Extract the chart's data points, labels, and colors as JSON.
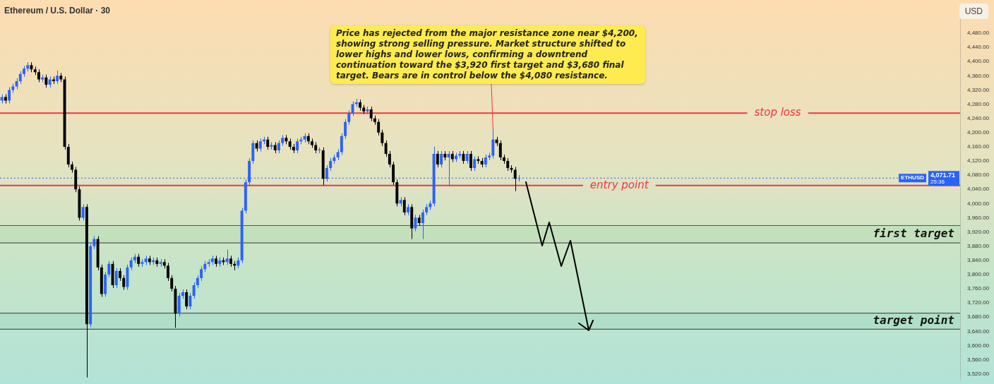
{
  "chart_data": {
    "type": "candlestick",
    "title": "Ethereum / U.S. Dollar · 30",
    "ylabel": "USD",
    "annotations": [
      "Price has rejected from the major resistance zone near $4,200, showing strong selling pressure. Market structure shifted to lower highs and lower lows, confirming a downtrend continuation toward the $3,920 first target and $3,680 final target. Bears are in control below the $4,080 resistance.",
      "ETHUSD",
      "25:36"
    ],
    "categories": [
      null,
      null,
      null,
      null,
      null,
      null,
      null,
      null,
      null,
      null,
      null,
      null,
      null,
      null,
      null,
      null,
      null,
      null,
      null,
      null,
      null,
      null,
      null,
      null,
      null,
      null,
      null,
      null,
      null,
      null,
      null,
      null,
      null,
      null,
      null,
      null,
      null,
      null,
      null,
      null,
      null,
      null,
      null,
      null,
      null,
      null,
      null,
      null,
      null,
      null,
      null,
      null,
      null,
      null,
      null,
      null,
      null,
      null,
      null,
      null,
      null,
      null,
      null,
      null,
      null,
      null,
      null,
      null,
      null,
      null,
      null,
      null,
      null,
      null,
      null,
      null,
      null,
      null,
      null,
      null,
      null,
      null,
      null,
      null,
      null,
      null,
      null,
      null,
      null,
      null,
      null,
      null,
      null,
      null,
      null,
      null,
      null,
      null,
      null,
      null,
      null,
      null,
      null,
      null,
      null,
      null,
      null,
      null,
      null,
      null,
      null,
      null,
      null,
      null,
      null,
      null,
      null,
      null,
      null,
      null,
      null,
      null,
      null,
      null,
      null,
      null,
      null,
      null,
      null,
      null,
      null,
      null,
      null,
      null,
      null,
      null,
      null,
      null,
      null,
      null,
      null,
      null,
      null,
      null,
      null,
      null,
      null,
      null,
      null,
      null,
      null,
      null,
      null,
      null,
      null,
      null,
      null,
      null,
      null,
      null,
      null,
      null,
      null,
      null,
      null,
      null,
      null,
      null,
      null,
      null,
      null,
      null,
      null,
      null,
      null,
      null,
      null,
      null,
      null,
      null,
      null,
      null,
      null,
      null,
      null,
      null,
      null,
      null,
      null,
      null,
      null,
      null,
      null,
      null,
      null,
      null,
      null,
      null,
      null,
      null,
      null,
      null,
      null,
      null,
      null,
      null,
      null,
      null,
      null,
      null,
      null,
      null,
      null,
      null,
      null,
      null,
      null,
      null,
      null,
      null,
      null,
      null,
      null,
      null,
      null,
      null,
      null,
      null,
      null,
      null,
      null,
      null,
      null,
      null,
      null,
      null,
      null,
      null,
      null,
      null,
      null,
      null,
      null,
      null,
      null,
      null,
      null,
      null,
      null,
      null,
      null,
      null,
      null,
      null,
      null,
      null,
      null,
      null,
      null,
      null
    ],
    "colors": [
      "#2962ff",
      "#000000",
      "#2962ff",
      "#2962ff",
      "#2962ff",
      "#2962ff",
      "#2962ff",
      "#2962ff",
      "#000000",
      "#000000",
      "#000000",
      "#2962ff",
      "#000000",
      "#2962ff",
      "#000000",
      "#2962ff",
      "#000000",
      "#000000",
      "#000000",
      "#000000",
      "#000000",
      "#000000",
      "#2962ff",
      "#000000",
      "#2962ff",
      "#2962ff",
      "#000000",
      "#000000",
      "#2962ff",
      "#2962ff",
      "#000000",
      "#2962ff",
      "#000000",
      "#000000",
      "#2962ff",
      "#2962ff",
      "#2962ff",
      "#000000",
      "#2962ff",
      "#2962ff",
      "#000000",
      "#2962ff",
      "#000000",
      "#2962ff",
      "#000000",
      "#000000",
      "#000000",
      "#000000",
      "#2962ff",
      "#2962ff",
      "#000000",
      "#2962ff",
      "#2962ff",
      "#2962ff",
      "#2962ff",
      "#2962ff",
      "#2962ff",
      "#2962ff",
      "#000000",
      "#2962ff",
      "#000000",
      "#2962ff",
      "#000000",
      "#000000",
      "#2962ff",
      "#2962ff",
      "#2962ff",
      "#2962ff",
      "#2962ff",
      "#000000",
      "#2962ff",
      "#2962ff",
      "#000000",
      "#2962ff",
      "#000000",
      "#2962ff",
      "#2962ff",
      "#000000",
      "#000000",
      "#000000",
      "#2962ff",
      "#2962ff",
      "#2962ff",
      "#000000",
      "#000000",
      "#000000",
      "#2962ff",
      "#000000",
      "#2962ff",
      "#2962ff",
      "#2962ff",
      "#2962ff",
      "#2962ff",
      "#2962ff",
      "#2962ff",
      "#2962ff",
      "#2962ff",
      "#000000",
      "#000000",
      "#2962ff",
      "#000000",
      "#000000",
      "#000000",
      "#000000",
      "#000000",
      "#000000",
      "#000000",
      "#000000",
      "#2962ff",
      "#000000",
      "#2962ff",
      "#000000",
      "#2962ff",
      "#000000",
      "#2962ff",
      "#2962ff",
      "#2962ff",
      "#2962ff",
      "#000000",
      "#2962ff",
      "#000000",
      "#2962ff",
      "#000000",
      "#2962ff",
      "#2962ff",
      "#000000",
      "#2962ff",
      "#000000",
      "#2962ff",
      "#000000",
      "#000000",
      "#2962ff",
      "#2962ff",
      "#2962ff",
      "#000000",
      "#000000",
      "#000000",
      "#000000",
      "#000000",
      "#000000",
      "#2962ff",
      null,
      null,
      null,
      null,
      null,
      null,
      null,
      null,
      null,
      null,
      null,
      null,
      null,
      null,
      null,
      null,
      null,
      null,
      null,
      null,
      null,
      null,
      null,
      null,
      null,
      null,
      null,
      null,
      null,
      null,
      null,
      null,
      null,
      null,
      null,
      null,
      null,
      null,
      null,
      null,
      null,
      null,
      null,
      null,
      null,
      null,
      null,
      null,
      null,
      null,
      null,
      null,
      null,
      null,
      null,
      null,
      null,
      null,
      null,
      null,
      null,
      null,
      null,
      null,
      null,
      null,
      null,
      null,
      null,
      null,
      null,
      null,
      null,
      null,
      null,
      null,
      null,
      null,
      null,
      null,
      null,
      null,
      null,
      null,
      null,
      null,
      null,
      null,
      null,
      null,
      null,
      null,
      null,
      null,
      null,
      null,
      null,
      null,
      null,
      null,
      null,
      null,
      null,
      null,
      null,
      null,
      null,
      null,
      null,
      null,
      null,
      null,
      null,
      null,
      null,
      null,
      null,
      null,
      null
    ],
    "ohlc": [
      [
        4290,
        4308,
        4282,
        4300
      ],
      [
        4300,
        4308,
        4282,
        4290
      ],
      [
        4290,
        4328,
        4282,
        4320
      ],
      [
        4320,
        4338,
        4312,
        4330
      ],
      [
        4330,
        4353,
        4322,
        4345
      ],
      [
        4345,
        4373,
        4337,
        4365
      ],
      [
        4365,
        4388,
        4357,
        4380
      ],
      [
        4380,
        4398,
        4372,
        4390
      ],
      [
        4390,
        4398,
        4370,
        4378
      ],
      [
        4378,
        4386,
        4362,
        4370
      ],
      [
        4370,
        4378,
        4342,
        4350
      ],
      [
        4350,
        4363,
        4342,
        4355
      ],
      [
        4355,
        4363,
        4327,
        4335
      ],
      [
        4335,
        4358,
        4327,
        4350
      ],
      [
        4350,
        4358,
        4337,
        4345
      ],
      [
        4345,
        4375,
        4337,
        4360
      ],
      [
        4360,
        4368,
        4342,
        4350
      ],
      [
        4350,
        4358,
        4152,
        4160
      ],
      [
        4160,
        4168,
        4102,
        4110
      ],
      [
        4110,
        4118,
        4087,
        4095
      ],
      [
        4095,
        4103,
        4032,
        4040
      ],
      [
        4040,
        4048,
        3952,
        3960
      ],
      [
        3960,
        3998,
        3952,
        3990
      ],
      [
        3990,
        3998,
        3510,
        3660
      ],
      [
        3660,
        3888,
        3652,
        3880
      ],
      [
        3880,
        3908,
        3872,
        3900
      ],
      [
        3900,
        3908,
        3812,
        3820
      ],
      [
        3820,
        3828,
        3737,
        3745
      ],
      [
        3745,
        3808,
        3737,
        3800
      ],
      [
        3800,
        3838,
        3792,
        3830
      ],
      [
        3830,
        3838,
        3762,
        3770
      ],
      [
        3770,
        3818,
        3762,
        3810
      ],
      [
        3810,
        3818,
        3782,
        3790
      ],
      [
        3790,
        3798,
        3757,
        3765
      ],
      [
        3765,
        3828,
        3757,
        3820
      ],
      [
        3820,
        3848,
        3812,
        3840
      ],
      [
        3840,
        3858,
        3832,
        3850
      ],
      [
        3850,
        3858,
        3822,
        3830
      ],
      [
        3830,
        3843,
        3822,
        3835
      ],
      [
        3835,
        3853,
        3827,
        3845
      ],
      [
        3845,
        3853,
        3827,
        3835
      ],
      [
        3835,
        3848,
        3827,
        3840
      ],
      [
        3840,
        3848,
        3822,
        3830
      ],
      [
        3830,
        3843,
        3822,
        3835
      ],
      [
        3835,
        3843,
        3817,
        3825
      ],
      [
        3825,
        3833,
        3782,
        3790
      ],
      [
        3790,
        3798,
        3752,
        3760
      ],
      [
        3760,
        3768,
        3650,
        3690
      ],
      [
        3690,
        3748,
        3682,
        3740
      ],
      [
        3740,
        3758,
        3732,
        3750
      ],
      [
        3750,
        3758,
        3702,
        3710
      ],
      [
        3710,
        3748,
        3702,
        3740
      ],
      [
        3740,
        3778,
        3732,
        3770
      ],
      [
        3770,
        3798,
        3762,
        3790
      ],
      [
        3790,
        3823,
        3782,
        3815
      ],
      [
        3815,
        3838,
        3807,
        3830
      ],
      [
        3830,
        3843,
        3822,
        3835
      ],
      [
        3835,
        3853,
        3827,
        3845
      ],
      [
        3845,
        3853,
        3822,
        3830
      ],
      [
        3830,
        3848,
        3822,
        3840
      ],
      [
        3840,
        3848,
        3827,
        3835
      ],
      [
        3835,
        3870,
        3827,
        3845
      ],
      [
        3845,
        3853,
        3822,
        3830
      ],
      [
        3830,
        3838,
        3812,
        3825
      ],
      [
        3825,
        3848,
        3817,
        3840
      ],
      [
        3840,
        3988,
        3832,
        3980
      ],
      [
        3980,
        4068,
        3972,
        4060
      ],
      [
        4060,
        4128,
        4052,
        4120
      ],
      [
        4120,
        4178,
        4112,
        4170
      ],
      [
        4170,
        4178,
        4147,
        4155
      ],
      [
        4155,
        4183,
        4147,
        4175
      ],
      [
        4175,
        4188,
        4167,
        4180
      ],
      [
        4180,
        4188,
        4152,
        4160
      ],
      [
        4160,
        4173,
        4152,
        4165
      ],
      [
        4165,
        4173,
        4142,
        4150
      ],
      [
        4150,
        4178,
        4142,
        4170
      ],
      [
        4170,
        4193,
        4162,
        4185
      ],
      [
        4185,
        4193,
        4167,
        4175
      ],
      [
        4175,
        4183,
        4152,
        4160
      ],
      [
        4160,
        4168,
        4142,
        4150
      ],
      [
        4150,
        4183,
        4142,
        4175
      ],
      [
        4175,
        4188,
        4167,
        4180
      ],
      [
        4180,
        4198,
        4172,
        4190
      ],
      [
        4190,
        4198,
        4167,
        4175
      ],
      [
        4175,
        4183,
        4157,
        4165
      ],
      [
        4165,
        4173,
        4142,
        4150
      ],
      [
        4150,
        4158,
        4142,
        4150
      ],
      [
        4150,
        4158,
        4052,
        4070
      ],
      [
        4070,
        4108,
        4062,
        4100
      ],
      [
        4100,
        4128,
        4092,
        4120
      ],
      [
        4120,
        4138,
        4112,
        4130
      ],
      [
        4130,
        4153,
        4122,
        4145
      ],
      [
        4145,
        4198,
        4137,
        4190
      ],
      [
        4190,
        4238,
        4182,
        4230
      ],
      [
        4230,
        4263,
        4222,
        4255
      ],
      [
        4255,
        4288,
        4247,
        4280
      ],
      [
        4280,
        4295,
        4272,
        4285
      ],
      [
        4285,
        4293,
        4262,
        4270
      ],
      [
        4270,
        4278,
        4252,
        4260
      ],
      [
        4260,
        4273,
        4252,
        4265
      ],
      [
        4265,
        4273,
        4232,
        4240
      ],
      [
        4240,
        4248,
        4222,
        4230
      ],
      [
        4230,
        4238,
        4192,
        4200
      ],
      [
        4200,
        4208,
        4162,
        4170
      ],
      [
        4170,
        4178,
        4132,
        4140
      ],
      [
        4140,
        4148,
        4102,
        4110
      ],
      [
        4110,
        4118,
        4052,
        4060
      ],
      [
        4060,
        4068,
        3992,
        4000
      ],
      [
        4000,
        4018,
        3992,
        4010
      ],
      [
        4010,
        4018,
        3967,
        3975
      ],
      [
        3975,
        3998,
        3967,
        3990
      ],
      [
        3990,
        3998,
        3900,
        3930
      ],
      [
        3930,
        3968,
        3922,
        3960
      ],
      [
        3960,
        3968,
        3937,
        3945
      ],
      [
        3945,
        3983,
        3900,
        3975
      ],
      [
        3975,
        3998,
        3967,
        3990
      ],
      [
        3990,
        4008,
        3982,
        4000
      ],
      [
        4000,
        4160,
        3992,
        4140
      ],
      [
        4140,
        4148,
        4102,
        4110
      ],
      [
        4110,
        4148,
        4102,
        4140
      ],
      [
        4140,
        4148,
        4122,
        4130
      ],
      [
        4130,
        4148,
        4050,
        4140
      ],
      [
        4140,
        4148,
        4117,
        4125
      ],
      [
        4125,
        4143,
        4117,
        4135
      ],
      [
        4135,
        4148,
        4127,
        4140
      ],
      [
        4140,
        4148,
        4112,
        4120
      ],
      [
        4120,
        4148,
        4112,
        4140
      ],
      [
        4140,
        4148,
        4092,
        4100
      ],
      [
        4100,
        4133,
        4092,
        4125
      ],
      [
        4125,
        4133,
        4112,
        4120
      ],
      [
        4120,
        4128,
        4102,
        4110
      ],
      [
        4110,
        4138,
        4102,
        4130
      ],
      [
        4130,
        4143,
        4122,
        4135
      ],
      [
        4135,
        4210,
        4127,
        4180
      ],
      [
        4180,
        4188,
        4162,
        4170
      ],
      [
        4170,
        4178,
        4122,
        4130
      ],
      [
        4130,
        4138,
        4112,
        4120
      ],
      [
        4120,
        4128,
        4092,
        4100
      ],
      [
        4100,
        4108,
        4087,
        4095
      ],
      [
        4095,
        4103,
        4035,
        4070
      ],
      [
        4070,
        4080,
        4062,
        4071.71
      ],
      null,
      null,
      null,
      null,
      null,
      null,
      null,
      null,
      null,
      null,
      null,
      null,
      null,
      null,
      null,
      null,
      null,
      null,
      null,
      null,
      null,
      null,
      null,
      null,
      null,
      null,
      null,
      null,
      null,
      null,
      null,
      null,
      null,
      null,
      null,
      null,
      null,
      null,
      null,
      null,
      null,
      null,
      null,
      null,
      null,
      null,
      null,
      null,
      null,
      null,
      null,
      null,
      null,
      null,
      null,
      null,
      null,
      null,
      null,
      null,
      null,
      null,
      null,
      null,
      null,
      null,
      null,
      null,
      null,
      null,
      null,
      null,
      null,
      null,
      null,
      null,
      null,
      null,
      null,
      null,
      null,
      null,
      null,
      null,
      null,
      null,
      null,
      null,
      null,
      null,
      null,
      null,
      null,
      null,
      null,
      null,
      null,
      null,
      null,
      null,
      null,
      null,
      null,
      null,
      null,
      null,
      null,
      null,
      null,
      null,
      null,
      null,
      null,
      null,
      null,
      null,
      null,
      null,
      null
    ],
    "ref_lines": [
      {
        "axis": "y",
        "value": 4255,
        "label": "stop loss",
        "color": "#f23645",
        "line_style": "solid"
      },
      {
        "axis": "y",
        "value": 4051,
        "label": "entry point",
        "color": "#f23645",
        "line_style": "solid"
      },
      {
        "axis": "y",
        "value": 4071.71,
        "label": "4,071.71",
        "color": "#2962ff",
        "line_style": "dotted"
      }
    ],
    "bands": [
      {
        "axis": "y",
        "from": 3889,
        "to": 3938,
        "label": "first target",
        "color": "#c3e0bd"
      },
      {
        "axis": "y",
        "from": 3646,
        "to": 3691,
        "label": "target point",
        "color": "#b0dfc8"
      }
    ],
    "ylim": [
      3505,
      4560
    ],
    "yticks": [
      {
        "value": 3520,
        "label": "3,520.00"
      },
      {
        "value": 3560,
        "label": "3,560.00"
      },
      {
        "value": 3600,
        "label": "3,600.00"
      },
      {
        "value": 3640,
        "label": "3,640.00"
      },
      {
        "value": 3680,
        "label": "3,680.00"
      },
      {
        "value": 3720,
        "label": "3,720.00"
      },
      {
        "value": 3760,
        "label": "3,760.00"
      },
      {
        "value": 3800,
        "label": "3,800.00"
      },
      {
        "value": 3840,
        "label": "3,840.00"
      },
      {
        "value": 3880,
        "label": "3,880.00"
      },
      {
        "value": 3920,
        "label": "3,920.00"
      },
      {
        "value": 3960,
        "label": "3,960.00"
      },
      {
        "value": 4000,
        "label": "4,000.00"
      },
      {
        "value": 4040,
        "label": "4,040.00"
      },
      {
        "value": 4080,
        "label": "4,080.00"
      },
      {
        "value": 4120,
        "label": "4,120.00"
      },
      {
        "value": 4160,
        "label": "4,160.00"
      },
      {
        "value": 4200,
        "label": "4,200.00"
      },
      {
        "value": 4240,
        "label": "4,240.00"
      },
      {
        "value": 4280,
        "label": "4,280.00"
      },
      {
        "value": 4320,
        "label": "4,320.00"
      },
      {
        "value": 4360,
        "label": "4,360.00"
      },
      {
        "value": 4400,
        "label": "4,400.00"
      },
      {
        "value": 4440,
        "label": "4,440.00"
      },
      {
        "value": 4480,
        "label": "4,480.00"
      }
    ],
    "tick_labels": "y",
    "grid": false,
    "legend": false
  }
}
